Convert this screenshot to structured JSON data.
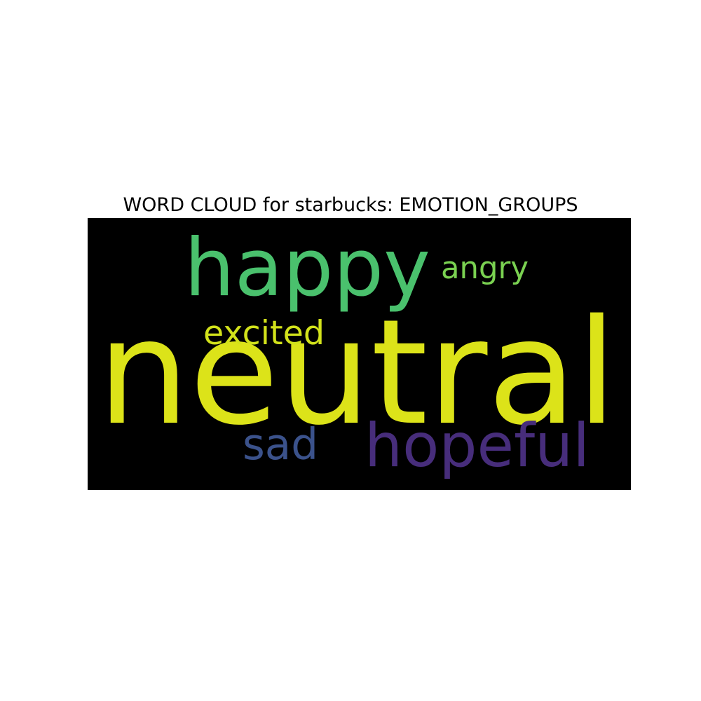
{
  "chart_data": {
    "type": "wordcloud",
    "title": "WORD CLOUD for starbucks: EMOTION_GROUPS",
    "background": "#000000",
    "words": [
      {
        "text": "neutral",
        "color": "#dce319"
      },
      {
        "text": "happy",
        "color": "#4ac16d"
      },
      {
        "text": "hopeful",
        "color": "#472d7b"
      },
      {
        "text": "sad",
        "color": "#3b528b"
      },
      {
        "text": "angry",
        "color": "#7ad151"
      },
      {
        "text": "excited",
        "color": "#d2e21b"
      }
    ]
  }
}
